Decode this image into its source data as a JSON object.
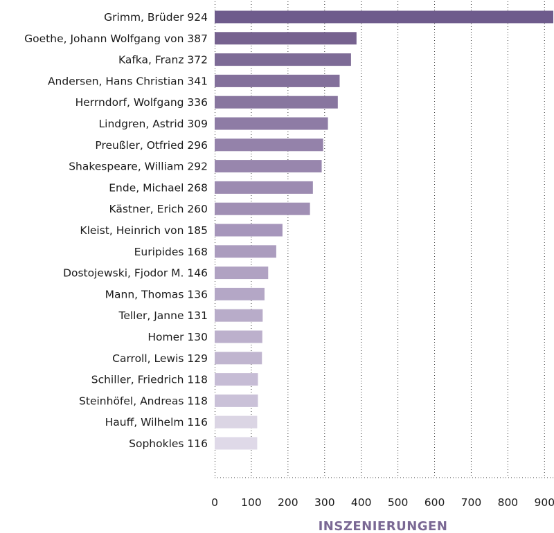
{
  "chart_data": {
    "type": "bar",
    "orientation": "horizontal",
    "categories": [
      "Grimm, Brüder 924",
      "Goethe, Johann Wolfgang von 387",
      "Kafka, Franz 372",
      "Andersen, Hans Christian 341",
      "Herrndorf, Wolfgang 336",
      "Lindgren, Astrid 309",
      "Preußler, Otfried 296",
      "Shakespeare, William 292",
      "Ende, Michael 268",
      "Kästner, Erich 260",
      "Kleist, Heinrich von 185",
      "Euripides 168",
      "Dostojewski, Fjodor M. 146",
      "Mann, Thomas 136",
      "Teller, Janne 131",
      "Homer 130",
      "Carroll, Lewis 129",
      "Schiller, Friedrich 118",
      "Steinhöfel, Andreas 118",
      "Hauff, Wilhelm 116",
      "Sophokles 116"
    ],
    "values": [
      924,
      387,
      372,
      341,
      336,
      309,
      296,
      292,
      268,
      260,
      185,
      168,
      146,
      136,
      131,
      130,
      129,
      118,
      118,
      116,
      116
    ],
    "colors": [
      "#6e5b8c",
      "#76628f",
      "#7d6b96",
      "#83709b",
      "#88769f",
      "#8e7ca5",
      "#9482aa",
      "#9886ad",
      "#9c8bb1",
      "#a08fb4",
      "#a696bb",
      "#ab9cbe",
      "#b0a2c2",
      "#b4a7c6",
      "#b8acc9",
      "#bcb0cc",
      "#c0b5cf",
      "#c6bcd5",
      "#cac1d8",
      "#dbd5e4",
      "#dfd9e8"
    ],
    "xlabel": "INSZENIERUNGEN",
    "xlabel_color": "#7a6894",
    "xticks": [
      0,
      100,
      200,
      300,
      400,
      500,
      600,
      700,
      800,
      900
    ],
    "xlim": [
      0,
      924
    ],
    "grid": "vertical dotted"
  }
}
